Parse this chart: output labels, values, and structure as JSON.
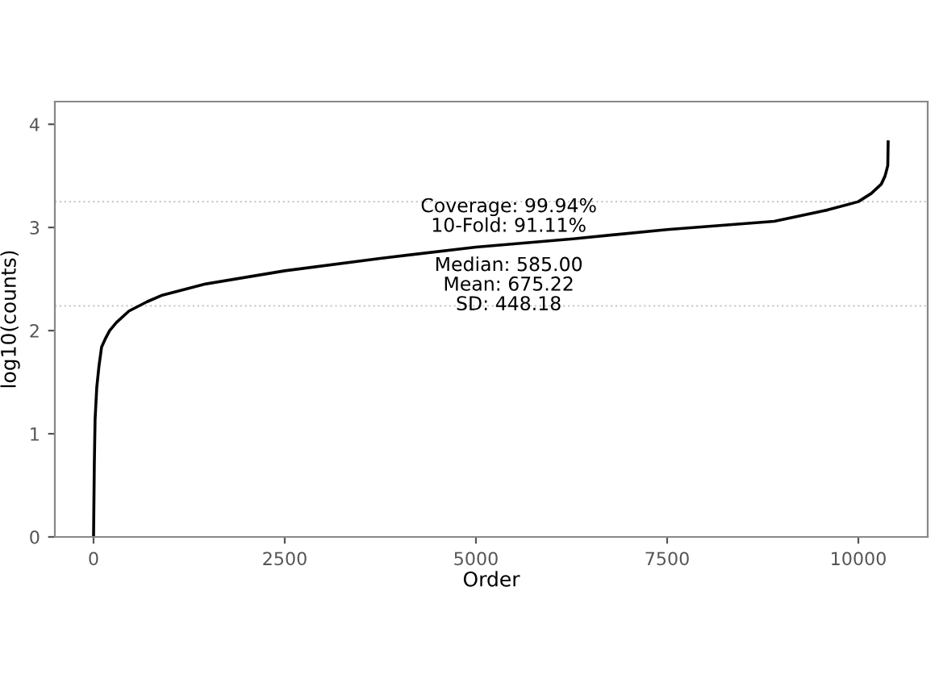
{
  "chart_data": {
    "type": "line",
    "xlabel": "Order",
    "ylabel": "log10(counts)",
    "x": [
      0,
      10,
      20,
      42,
      70,
      105,
      160,
      210,
      300,
      464,
      700,
      886,
      1450,
      2500,
      3750,
      5000,
      6270,
      7500,
      8900,
      9600,
      10000,
      10170,
      10300,
      10350,
      10385,
      10390
    ],
    "series": [
      {
        "color": "#000000",
        "values": [
          0,
          0.7,
          1.14,
          1.45,
          1.65,
          1.84,
          1.93,
          2.0,
          2.08,
          2.19,
          2.28,
          2.34,
          2.45,
          2.58,
          2.7,
          2.81,
          2.89,
          2.98,
          3.06,
          3.17,
          3.25,
          3.33,
          3.42,
          3.5,
          3.6,
          3.83
        ]
      }
    ],
    "xlim": [
      -506,
      10907
    ],
    "ylim": [
      0,
      4.22
    ],
    "xticks": [
      0,
      2500,
      5000,
      7500,
      10000
    ],
    "yticks": [
      0,
      1,
      2,
      3,
      4
    ],
    "ref_lines": [
      {
        "axis": "y",
        "value": 3.25,
        "color": "#cccccc",
        "line_style": "dotted"
      },
      {
        "axis": "y",
        "value": 2.24,
        "color": "#cccccc",
        "line_style": "dotted"
      }
    ],
    "annotations": [
      "Coverage: 99.94%",
      "10-Fold: 91.11%",
      "Median: 585.00",
      "Mean: 675.22",
      "SD: 448.18"
    ],
    "grid": false,
    "legend": false,
    "marker": "none",
    "line_style": "solid"
  }
}
